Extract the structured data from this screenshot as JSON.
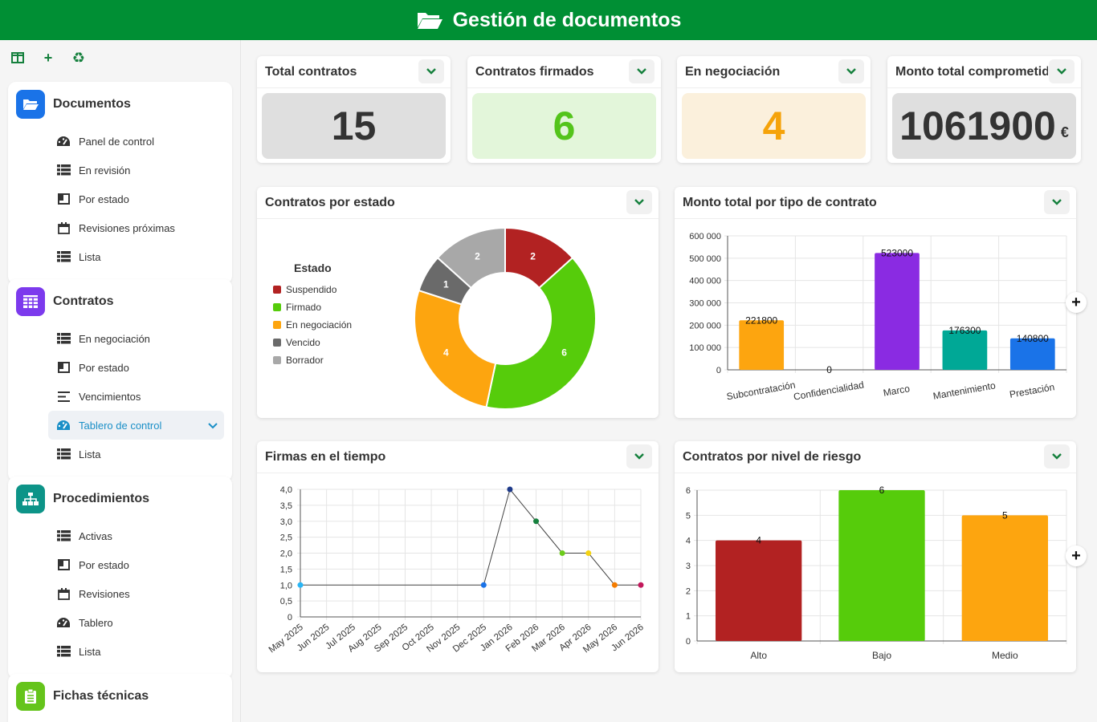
{
  "app": {
    "title": "Gestión de documentos"
  },
  "toolbar": {
    "icons": [
      "columns-icon",
      "plus-icon",
      "recycle-icon"
    ]
  },
  "sidebar": {
    "groups": [
      {
        "title": "Documentos",
        "color": "#1a73e8",
        "icon": "folder-open-icon",
        "items": [
          {
            "label": "Panel de control",
            "icon": "dashboard-icon"
          },
          {
            "label": "En revisión",
            "icon": "list-icon"
          },
          {
            "label": "Por estado",
            "icon": "kanban-icon"
          },
          {
            "label": "Revisiones próximas",
            "icon": "calendar-icon"
          },
          {
            "label": "Lista",
            "icon": "list-icon"
          }
        ]
      },
      {
        "title": "Contratos",
        "color": "#7c3aed",
        "icon": "grid-icon",
        "items": [
          {
            "label": "En negociación",
            "icon": "list-icon"
          },
          {
            "label": "Por estado",
            "icon": "kanban-icon"
          },
          {
            "label": "Vencimientos",
            "icon": "align-left-icon"
          },
          {
            "label": "Tablero de control",
            "icon": "dashboard-icon",
            "active": true
          },
          {
            "label": "Lista",
            "icon": "list-icon"
          }
        ]
      },
      {
        "title": "Procedimientos",
        "color": "#0d9488",
        "icon": "sitemap-icon",
        "items": [
          {
            "label": "Activas",
            "icon": "list-icon"
          },
          {
            "label": "Por estado",
            "icon": "kanban-icon"
          },
          {
            "label": "Revisiones",
            "icon": "calendar-icon"
          },
          {
            "label": "Tablero",
            "icon": "dashboard-icon"
          },
          {
            "label": "Lista",
            "icon": "list-icon"
          }
        ]
      },
      {
        "title": "Fichas técnicas",
        "color": "#65c41b",
        "icon": "clipboard-icon",
        "items": []
      }
    ]
  },
  "kpis": [
    {
      "title": "Total contratos",
      "value": "15",
      "unit": "",
      "bg": "#dfdfdf",
      "color": "#333333"
    },
    {
      "title": "Contratos firmados",
      "value": "6",
      "unit": "",
      "bg": "#e3f6da",
      "color": "#54c41b"
    },
    {
      "title": "En negociación",
      "value": "4",
      "unit": "",
      "bg": "#fbf0dc",
      "color": "#f5a30a"
    },
    {
      "title": "Monto total comprometid",
      "value": "1061900",
      "unit": "€",
      "bg": "#dfdfdf",
      "color": "#333333"
    }
  ],
  "panels": {
    "donut": {
      "title": "Contratos por estado"
    },
    "bar_tipo": {
      "title": "Monto total por tipo de contrato"
    },
    "line": {
      "title": "Firmas en el tiempo"
    },
    "bar_riesgo": {
      "title": "Contratos por nivel de riesgo"
    }
  },
  "chart_data": [
    {
      "type": "pie",
      "legend_title": "Estado",
      "legend_placement": "left",
      "slices": [
        {
          "label": "Suspendido",
          "value": 2,
          "color": "#b22222"
        },
        {
          "label": "Firmado",
          "value": 6,
          "color": "#56cc0b"
        },
        {
          "label": "En negociación",
          "value": 4,
          "color": "#fda50f"
        },
        {
          "label": "Vencido",
          "value": 1,
          "color": "#6a6a6a"
        },
        {
          "label": "Borrador",
          "value": 2,
          "color": "#a8a8a8"
        }
      ]
    },
    {
      "type": "bar",
      "categories": [
        "Subcontratación",
        "Confidencialidad",
        "Marco",
        "Mantenimiento",
        "Prestación"
      ],
      "values": [
        221800,
        0,
        523000,
        176300,
        140800
      ],
      "colors": [
        "#fda50f",
        "#b22222",
        "#8a2be2",
        "#00a896",
        "#1a73e8"
      ],
      "ylim": [
        0,
        600000
      ],
      "yticks": [
        "0",
        "100 000",
        "200 000",
        "300 000",
        "400 000",
        "500 000",
        "600 000"
      ],
      "grid": true
    },
    {
      "type": "line",
      "x": [
        "May 2025",
        "Jun 2025",
        "Jul 2025",
        "Aug 2025",
        "Sep 2025",
        "Oct 2025",
        "Nov 2025",
        "Dec 2025",
        "Jan 2026",
        "Feb 2026",
        "Mar 2026",
        "Apr 2026",
        "May 2026",
        "Jun 2026"
      ],
      "points": [
        {
          "x": "May 2025",
          "y": 1.0,
          "color": "#29b6f6"
        },
        {
          "x": "Dec 2025",
          "y": 1.0,
          "color": "#1a73e8"
        },
        {
          "x": "Jan 2026",
          "y": 4.0,
          "color": "#1e3a8a"
        },
        {
          "x": "Feb 2026",
          "y": 3.0,
          "color": "#15803d"
        },
        {
          "x": "Mar 2026",
          "y": 2.0,
          "color": "#6ccc1b"
        },
        {
          "x": "Apr 2026",
          "y": 2.0,
          "color": "#f5d312"
        },
        {
          "x": "May 2026",
          "y": 1.0,
          "color": "#f57c00"
        },
        {
          "x": "Jun 2026",
          "y": 1.0,
          "color": "#c2185b"
        }
      ],
      "ylim": [
        0,
        4
      ],
      "yticks": [
        "0",
        "0,5",
        "1,0",
        "1,5",
        "2,0",
        "2,5",
        "3,0",
        "3,5",
        "4,0"
      ],
      "grid": true
    },
    {
      "type": "bar",
      "categories": [
        "Alto",
        "Bajo",
        "Medio"
      ],
      "values": [
        4,
        6,
        5
      ],
      "colors": [
        "#b22222",
        "#56cc0b",
        "#fda50f"
      ],
      "ylim": [
        0,
        6
      ],
      "yticks": [
        "0",
        "1",
        "2",
        "3",
        "4",
        "5",
        "6"
      ],
      "grid": true
    }
  ]
}
